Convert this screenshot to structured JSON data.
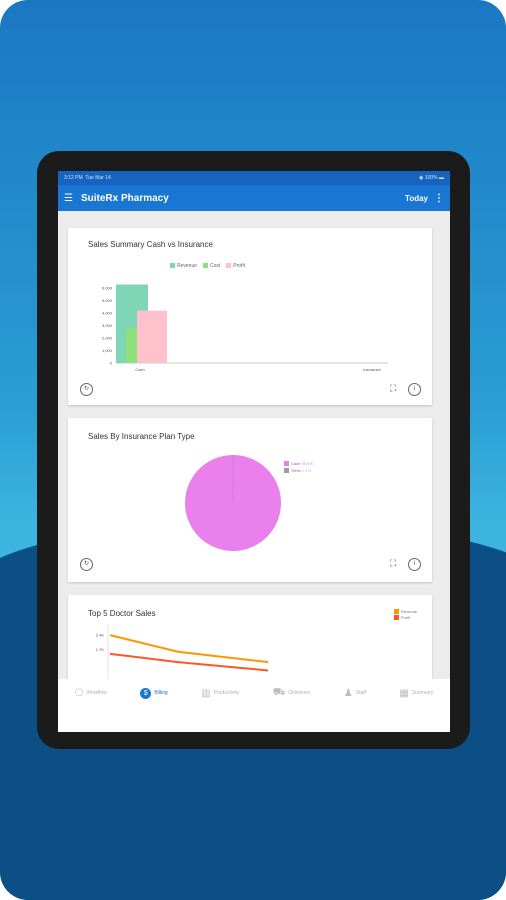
{
  "status_bar": {
    "time": "3:12 PM",
    "date": "Tue Mar 14",
    "battery": "100%"
  },
  "app_bar": {
    "title": "SuiteRx Pharmacy",
    "range_label": "Today"
  },
  "icons": {
    "menu": "menu-icon",
    "overflow": "more-vert-icon",
    "refresh": "refresh-icon",
    "expand": "expand-icon",
    "info": "info-icon"
  },
  "colors": {
    "primary": "#1976d2",
    "revenue": "#7fd6b7",
    "cost": "#8ee07a",
    "profit": "#ffc1cc",
    "pie": "#ea80ec",
    "line_revenue": "#ff9800",
    "line_profit": "#ff5722"
  },
  "cards": [
    {
      "title": "Sales Summary Cash vs Insurance"
    },
    {
      "title": "Sales By Insurance Plan Type"
    },
    {
      "title": "Top 5 Doctor Sales"
    }
  ],
  "chart_data": [
    {
      "type": "bar",
      "title": "Sales Summary Cash vs Insurance",
      "categories": [
        "Cash",
        "Insurance"
      ],
      "series": [
        {
          "name": "Revenue",
          "values": [
            6300,
            0
          ]
        },
        {
          "name": "Cost",
          "values": [
            2800,
            0
          ]
        },
        {
          "name": "Profit",
          "values": [
            4200,
            0
          ]
        }
      ],
      "yticks": [
        "0",
        "1,000",
        "2,000",
        "3,000",
        "4,000",
        "5,000",
        "6,000"
      ],
      "ylim": [
        0,
        6500
      ]
    },
    {
      "type": "pie",
      "title": "Sales By Insurance Plan Type",
      "slices": [
        {
          "name": "Cash",
          "value": 99.9,
          "label": "99.9%"
        },
        {
          "name": "Other",
          "value": 0.1,
          "label": "0.1%"
        }
      ]
    },
    {
      "type": "line",
      "title": "Top 5 Doctor Sales",
      "series": [
        {
          "name": "Revenue",
          "values": [
            2400,
            1600,
            1100
          ]
        },
        {
          "name": "Profit",
          "values": [
            1500,
            1100,
            700
          ]
        }
      ],
      "yticks": [
        "2.4K",
        "1.7K"
      ]
    }
  ],
  "nav": [
    {
      "label": "Workflow",
      "icon": "workflow-icon",
      "glyph": "⎔"
    },
    {
      "label": "Billing",
      "icon": "billing-icon",
      "glyph": "$"
    },
    {
      "label": "Productivity",
      "icon": "productivity-icon",
      "glyph": "▥"
    },
    {
      "label": "Deliveries",
      "icon": "deliveries-icon",
      "glyph": "⛟"
    },
    {
      "label": "Staff",
      "icon": "staff-icon",
      "glyph": "♟"
    },
    {
      "label": "Summary",
      "icon": "summary-icon",
      "glyph": "▦"
    }
  ]
}
